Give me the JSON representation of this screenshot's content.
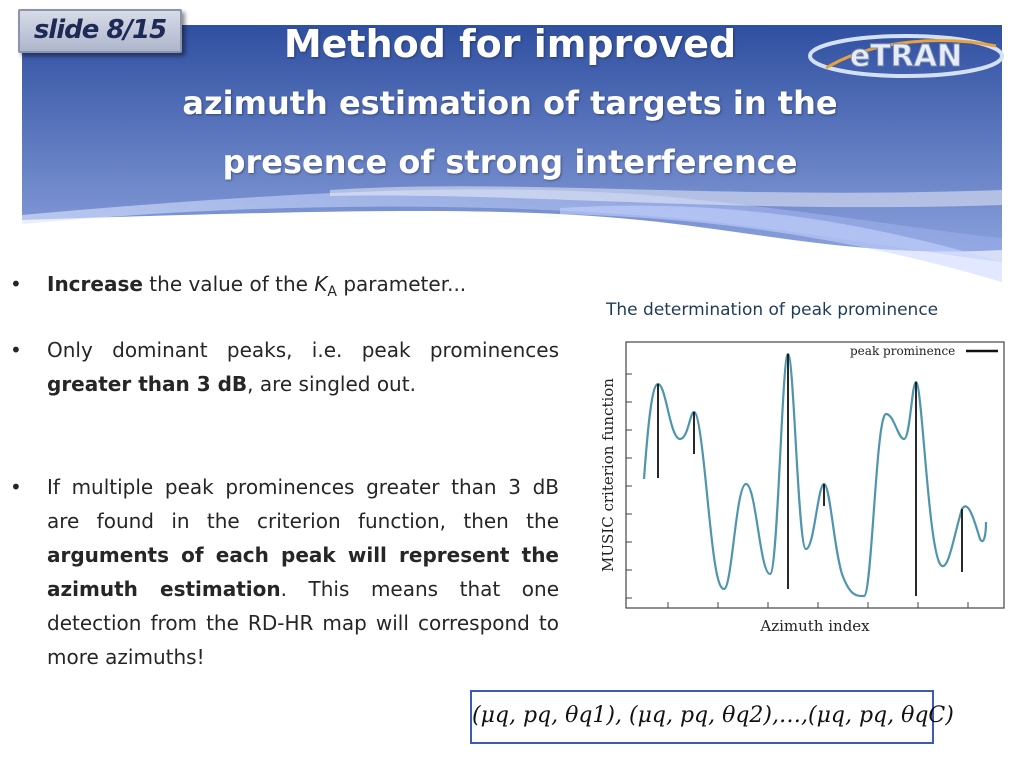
{
  "slide_badge": "slide 8/15",
  "title": {
    "line1": "Method for improved",
    "line2": "azimuth estimation of targets in the",
    "line3": "presence of strong interference"
  },
  "logo_text": "eTRAN",
  "bullets": [
    {
      "parts": [
        {
          "t": "Increase",
          "b": true
        },
        {
          "t": " the value of the ",
          "b": false
        },
        {
          "t": "K",
          "b": false,
          "i": true
        },
        {
          "t": "A",
          "b": false,
          "sub": true
        },
        {
          "t": " parameter...",
          "b": false
        }
      ]
    },
    {
      "parts": [
        {
          "t": "Only dominant peaks, i.e. peak prominences ",
          "b": false
        },
        {
          "t": "greater than 3 dB",
          "b": true
        },
        {
          "t": ", are singled out.",
          "b": false
        }
      ]
    },
    {
      "parts": [
        {
          "t": "If multiple peak prominences greater than 3 dB are found in the criterion function, then the ",
          "b": false
        },
        {
          "t": "arguments of each peak will represent the azimuth estimation",
          "b": true
        },
        {
          "t": ". This means that one detection from the RD-HR map will correspond to more azimuths!",
          "b": false
        }
      ]
    }
  ],
  "figure": {
    "caption": "The determination of peak prominence",
    "ylabel": "MUSIC criterion function",
    "xlabel": "Azimuth index",
    "legend": "peak prominence",
    "line_color": "#4f95ad"
  },
  "formula": "(μq, pq, θq1), (μq, pq, θq2),…,(μq, pq, θqC)",
  "colors": {
    "banner_top": "#2f4fa0",
    "banner_bottom": "#7f95d6",
    "accent_blue": "#3c5ab8"
  }
}
